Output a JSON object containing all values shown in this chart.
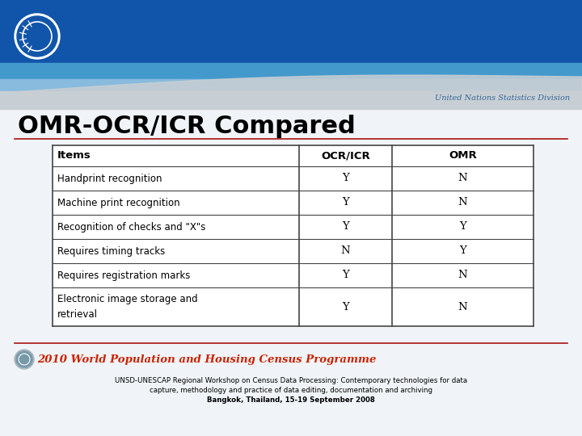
{
  "title": "OMR-OCR/ICR Compared",
  "title_fontsize": 22,
  "title_color": "#000000",
  "slide_bg": "#dce8f0",
  "un_text": "United Nations Statistics Division",
  "un_text_color": "#336699",
  "table_headers": [
    "Items",
    "OCR/ICR",
    "OMR"
  ],
  "table_rows": [
    [
      "Handprint recognition",
      "Y",
      "N"
    ],
    [
      "Machine print recognition",
      "Y",
      "N"
    ],
    [
      "Recognition of checks and \"X\"s",
      "Y",
      "Y"
    ],
    [
      "Requires timing tracks",
      "N",
      "Y"
    ],
    [
      "Requires registration marks",
      "Y",
      "N"
    ],
    [
      "Electronic image storage and\nretrieval",
      "Y",
      "N"
    ]
  ],
  "footer_line1": "UNSD-UNESCAP Regional Workshop on Census Data Processing: Contemporary technologies for data",
  "footer_line2": "capture, methodology and practice of data editing, documentation and archiving",
  "footer_line3": "Bangkok, Thailand, 15-19 September 2008",
  "census_text": "2010 World Population and Housing Census Programme",
  "census_text_color": "#cc2200",
  "divider_color": "#aa1111",
  "table_border_color": "#444444",
  "banner_dark": "#1155aa",
  "banner_mid": "#4499cc",
  "banner_light": "#aaccdd",
  "banner_grey": "#c8cfd4",
  "slide_white": "#f0f4f8",
  "stripe_color": "#dde8f2"
}
